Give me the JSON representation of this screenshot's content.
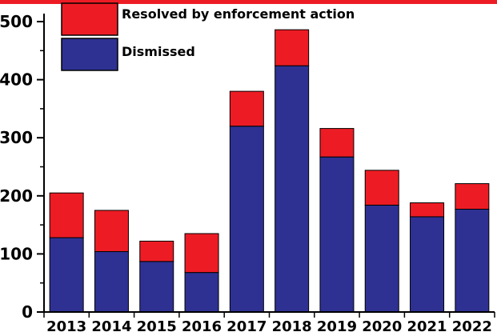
{
  "chart_data": {
    "type": "bar",
    "stacked": true,
    "categories": [
      "2013",
      "2014",
      "2015",
      "2016",
      "2017",
      "2018",
      "2019",
      "2020",
      "2021",
      "2022"
    ],
    "series": [
      {
        "name": "Dismissed",
        "color": "#2e3192",
        "values": [
          128,
          104,
          87,
          68,
          320,
          424,
          267,
          184,
          164,
          177
        ]
      },
      {
        "name": "Resolved by enforcement action",
        "color": "#ed1c24",
        "values": [
          77,
          71,
          35,
          67,
          60,
          62,
          49,
          60,
          24,
          44
        ]
      }
    ],
    "yticks": [
      0,
      100,
      200,
      300,
      400,
      500
    ],
    "ylim": [
      0,
      500
    ],
    "title": "",
    "xlabel": "",
    "ylabel": "",
    "legend_position": "top-left",
    "grid": false
  }
}
